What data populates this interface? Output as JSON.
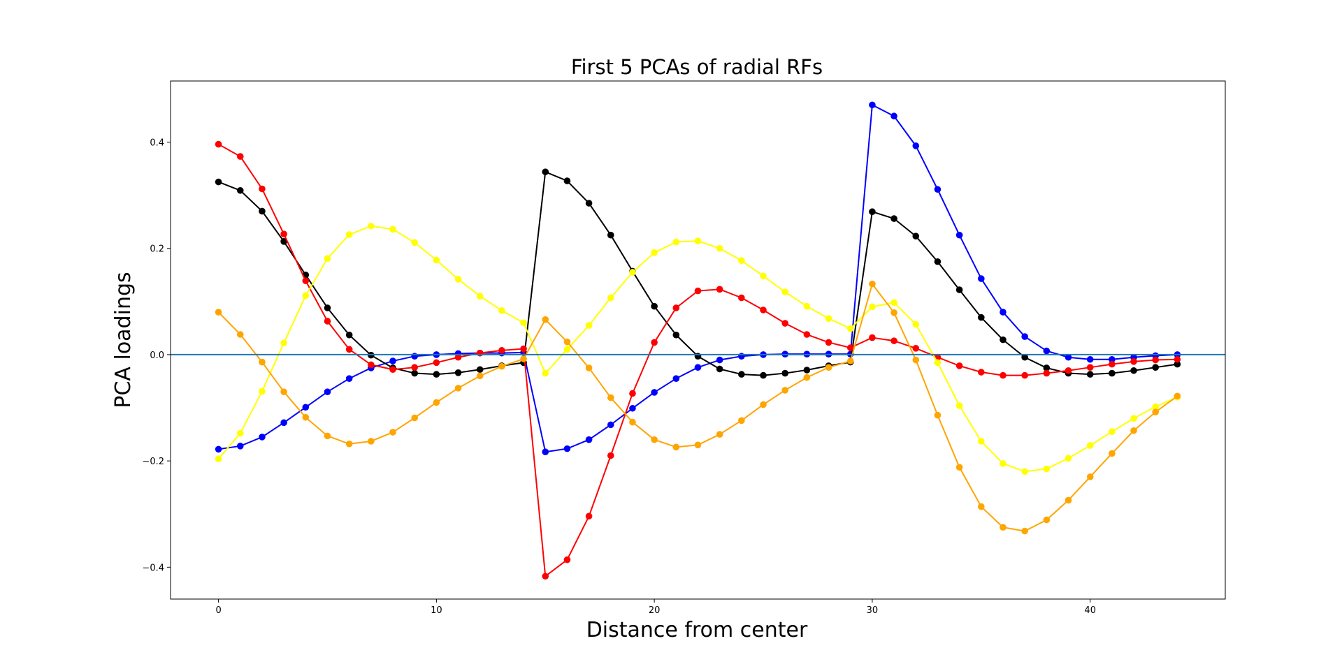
{
  "chart_data": {
    "type": "line",
    "title": "First 5 PCAs of radial RFs",
    "xlabel": "Distance from center",
    "ylabel": "PCA loadings",
    "xlim": [
      -2.2,
      46.2
    ],
    "ylim": [
      -0.46,
      0.515
    ],
    "xticks": [
      0,
      10,
      20,
      30,
      40
    ],
    "xtick_labels": [
      "0",
      "10",
      "20",
      "30",
      "40"
    ],
    "yticks": [
      -0.4,
      -0.2,
      0.0,
      0.2,
      0.4
    ],
    "ytick_labels": [
      "−0.4",
      "−0.2",
      "0.0",
      "0.2",
      "0.4"
    ],
    "grid": false,
    "legend": "none",
    "hline": {
      "y": 0.0,
      "color": "#1f77b4"
    },
    "x": [
      0,
      1,
      2,
      3,
      4,
      5,
      6,
      7,
      8,
      9,
      10,
      11,
      12,
      13,
      14,
      15,
      16,
      17,
      18,
      19,
      20,
      21,
      22,
      23,
      24,
      25,
      26,
      27,
      28,
      29,
      30,
      31,
      32,
      33,
      34,
      35,
      36,
      37,
      38,
      39,
      40,
      41,
      42,
      43,
      44
    ],
    "series": [
      {
        "color": "#0000ff",
        "values": [
          -0.178,
          -0.172,
          -0.155,
          -0.128,
          -0.099,
          -0.07,
          -0.045,
          -0.025,
          -0.012,
          -0.003,
          0.0,
          0.002,
          0.003,
          0.003,
          0.004,
          -0.183,
          -0.177,
          -0.16,
          -0.132,
          -0.101,
          -0.071,
          -0.045,
          -0.024,
          -0.01,
          -0.003,
          0.0,
          0.001,
          0.001,
          0.001,
          0.001,
          0.47,
          0.449,
          0.393,
          0.311,
          0.225,
          0.143,
          0.08,
          0.034,
          0.007,
          -0.005,
          -0.009,
          -0.009,
          -0.005,
          -0.002,
          0.0
        ]
      },
      {
        "color": "#000000",
        "values": [
          0.325,
          0.309,
          0.27,
          0.213,
          0.15,
          0.088,
          0.037,
          -0.001,
          -0.025,
          -0.035,
          -0.037,
          -0.034,
          -0.028,
          -0.021,
          -0.015,
          0.344,
          0.327,
          0.285,
          0.225,
          0.157,
          0.091,
          0.037,
          -0.003,
          -0.027,
          -0.037,
          -0.039,
          -0.035,
          -0.029,
          -0.021,
          -0.014,
          0.269,
          0.256,
          0.223,
          0.175,
          0.122,
          0.07,
          0.028,
          -0.005,
          -0.025,
          -0.035,
          -0.037,
          -0.035,
          -0.03,
          -0.024,
          -0.018
        ]
      },
      {
        "color": "#ff0000",
        "values": [
          0.396,
          0.373,
          0.312,
          0.227,
          0.139,
          0.063,
          0.01,
          -0.019,
          -0.028,
          -0.024,
          -0.015,
          -0.005,
          0.003,
          0.008,
          0.011,
          -0.417,
          -0.386,
          -0.304,
          -0.19,
          -0.073,
          0.023,
          0.088,
          0.12,
          0.123,
          0.107,
          0.084,
          0.059,
          0.038,
          0.023,
          0.013,
          0.032,
          0.026,
          0.012,
          -0.005,
          -0.021,
          -0.033,
          -0.039,
          -0.039,
          -0.035,
          -0.03,
          -0.024,
          -0.018,
          -0.013,
          -0.01,
          -0.009
        ]
      },
      {
        "color": "#ffff00",
        "values": [
          -0.196,
          -0.148,
          -0.069,
          0.022,
          0.111,
          0.181,
          0.226,
          0.242,
          0.236,
          0.211,
          0.178,
          0.142,
          0.11,
          0.083,
          0.06,
          -0.035,
          0.01,
          0.055,
          0.107,
          0.155,
          0.192,
          0.212,
          0.214,
          0.2,
          0.177,
          0.148,
          0.118,
          0.091,
          0.068,
          0.049,
          0.09,
          0.098,
          0.057,
          -0.015,
          -0.096,
          -0.163,
          -0.205,
          -0.22,
          -0.215,
          -0.195,
          -0.171,
          -0.145,
          -0.12,
          -0.098,
          -0.08
        ]
      },
      {
        "color": "#ffa500",
        "values": [
          0.08,
          0.038,
          -0.014,
          -0.07,
          -0.118,
          -0.153,
          -0.168,
          -0.163,
          -0.146,
          -0.119,
          -0.09,
          -0.063,
          -0.04,
          -0.022,
          -0.008,
          0.066,
          0.024,
          -0.025,
          -0.081,
          -0.127,
          -0.16,
          -0.174,
          -0.17,
          -0.15,
          -0.124,
          -0.094,
          -0.067,
          -0.043,
          -0.024,
          -0.012,
          0.133,
          0.079,
          -0.01,
          -0.114,
          -0.212,
          -0.286,
          -0.325,
          -0.332,
          -0.311,
          -0.274,
          -0.23,
          -0.186,
          -0.143,
          -0.108,
          -0.078
        ]
      }
    ]
  }
}
